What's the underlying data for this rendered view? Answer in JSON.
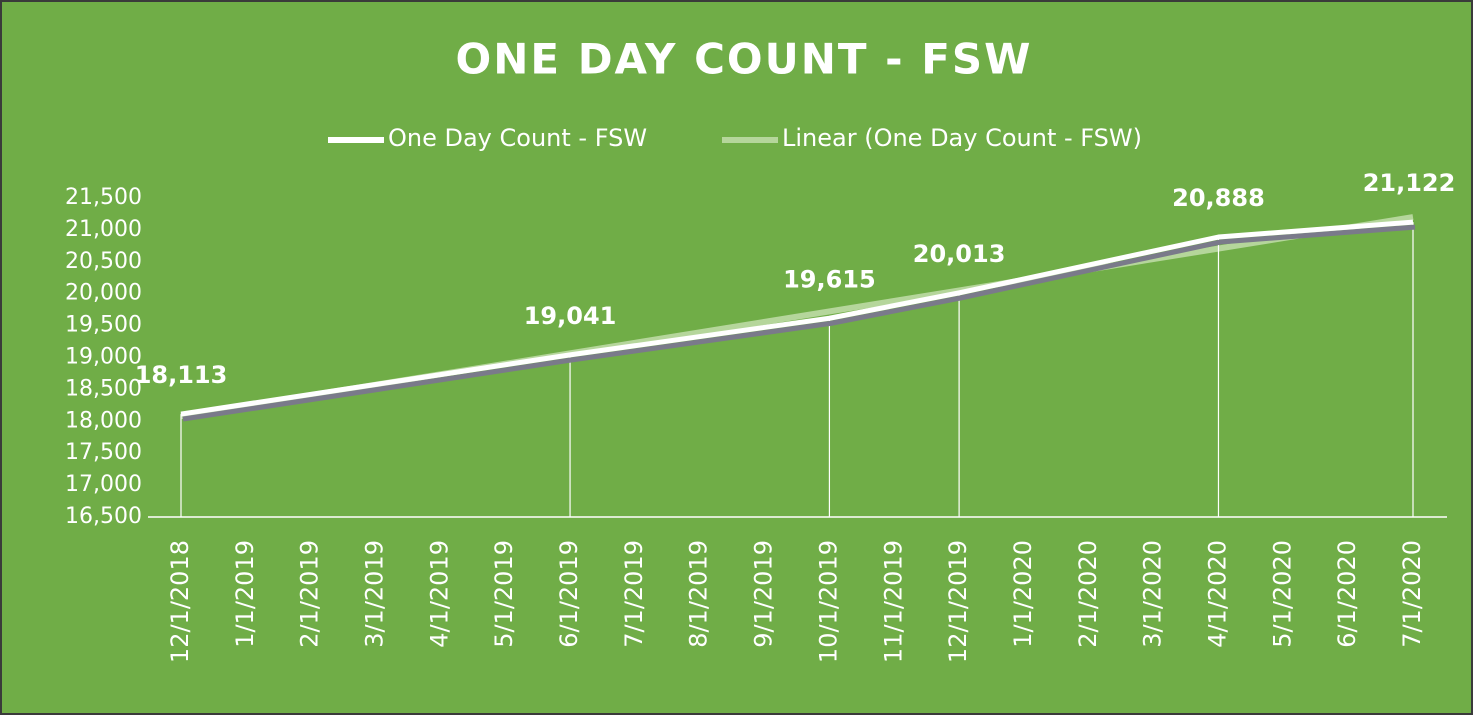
{
  "chart_data": {
    "type": "line",
    "title": "ONE DAY COUNT - FSW",
    "categories": [
      "12/1/2018",
      "1/1/2019",
      "2/1/2019",
      "3/1/2019",
      "4/1/2019",
      "5/1/2019",
      "6/1/2019",
      "7/1/2019",
      "8/1/2019",
      "9/1/2019",
      "10/1/2019",
      "11/1/2019",
      "12/1/2019",
      "1/1/2020",
      "2/1/2020",
      "3/1/2020",
      "4/1/2020",
      "5/1/2020",
      "6/1/2020",
      "7/1/2020"
    ],
    "series": [
      {
        "name": "One Day Count - FSW",
        "color": "#ffffff",
        "x": [
          "12/1/2018",
          "6/1/2019",
          "10/1/2019",
          "12/1/2019",
          "4/1/2020",
          "7/1/2020"
        ],
        "values": [
          18113,
          19041,
          19615,
          20013,
          20888,
          21122
        ],
        "value_labels": [
          "18,113",
          "19,041",
          "19,615",
          "20,013",
          "20,888",
          "21,122"
        ]
      },
      {
        "name": "Linear (One Day Count - FSW)",
        "color": "#b5d69b",
        "x": [
          "12/1/2018",
          "7/1/2020"
        ],
        "values": [
          18080,
          21200
        ]
      }
    ],
    "ylim": [
      16500,
      21500
    ],
    "yticks": [
      {
        "value": 16500,
        "label": "16,500"
      },
      {
        "value": 17000,
        "label": "17,000"
      },
      {
        "value": 17500,
        "label": "17,500"
      },
      {
        "value": 18000,
        "label": "18,000"
      },
      {
        "value": 18500,
        "label": "18,500"
      },
      {
        "value": 19000,
        "label": "19,000"
      },
      {
        "value": 19500,
        "label": "19,500"
      },
      {
        "value": 20000,
        "label": "20,000"
      },
      {
        "value": 20500,
        "label": "20,500"
      },
      {
        "value": 21000,
        "label": "21,000"
      },
      {
        "value": 21500,
        "label": "21,500"
      }
    ],
    "legend": "top"
  }
}
